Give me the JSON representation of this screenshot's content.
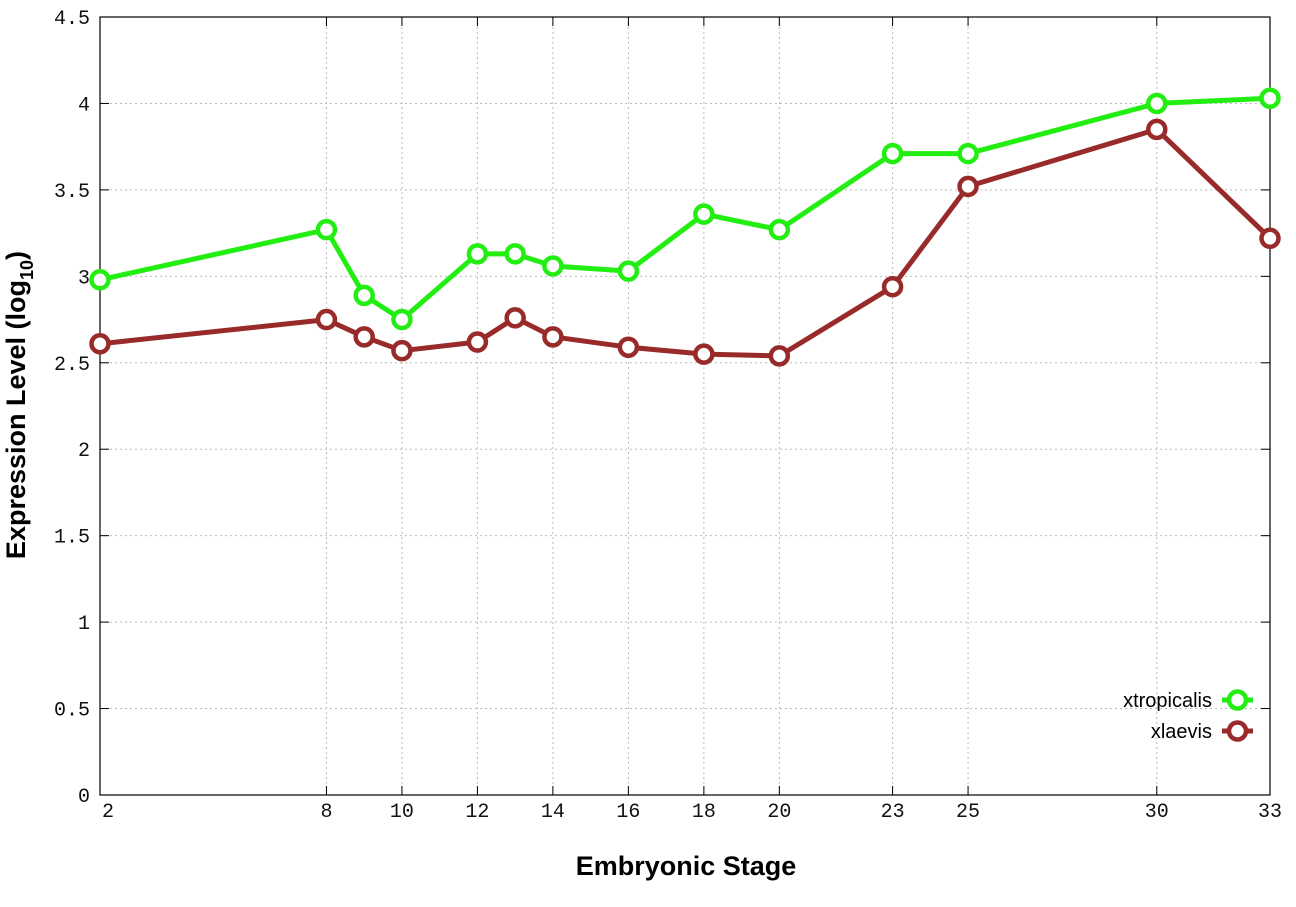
{
  "chart_data": {
    "type": "line",
    "xlabel": "Embryonic Stage",
    "ylabel_main": "Expression Level (log",
    "ylabel_sub": "10",
    "ylabel_close": ")",
    "x": [
      2,
      8,
      9,
      10,
      12,
      13,
      14,
      16,
      18,
      20,
      23,
      25,
      30,
      33
    ],
    "xticks": [
      2,
      8,
      10,
      12,
      14,
      16,
      18,
      20,
      23,
      25,
      30,
      33
    ],
    "xlim": [
      2,
      33
    ],
    "ylim": [
      0,
      4.5
    ],
    "yticks": [
      0,
      0.5,
      1,
      1.5,
      2,
      2.5,
      3,
      3.5,
      4,
      4.5
    ],
    "ytick_labels": [
      "0",
      "0.5",
      "1",
      "1.5",
      "2",
      "2.5",
      "3",
      "3.5",
      "4",
      "4.5"
    ],
    "grid": true,
    "legend_position": "bottom-right",
    "series": [
      {
        "name": "xtropicalis",
        "color": "#22ee11",
        "values": [
          2.98,
          3.27,
          2.89,
          2.75,
          3.13,
          3.13,
          3.06,
          3.03,
          3.36,
          3.27,
          3.71,
          3.71,
          4.0,
          4.03
        ]
      },
      {
        "name": "xlaevis",
        "color": "#992a2a",
        "values": [
          2.61,
          2.75,
          2.65,
          2.57,
          2.62,
          2.76,
          2.65,
          2.59,
          2.55,
          2.54,
          2.94,
          3.52,
          3.85,
          3.22
        ]
      }
    ]
  }
}
